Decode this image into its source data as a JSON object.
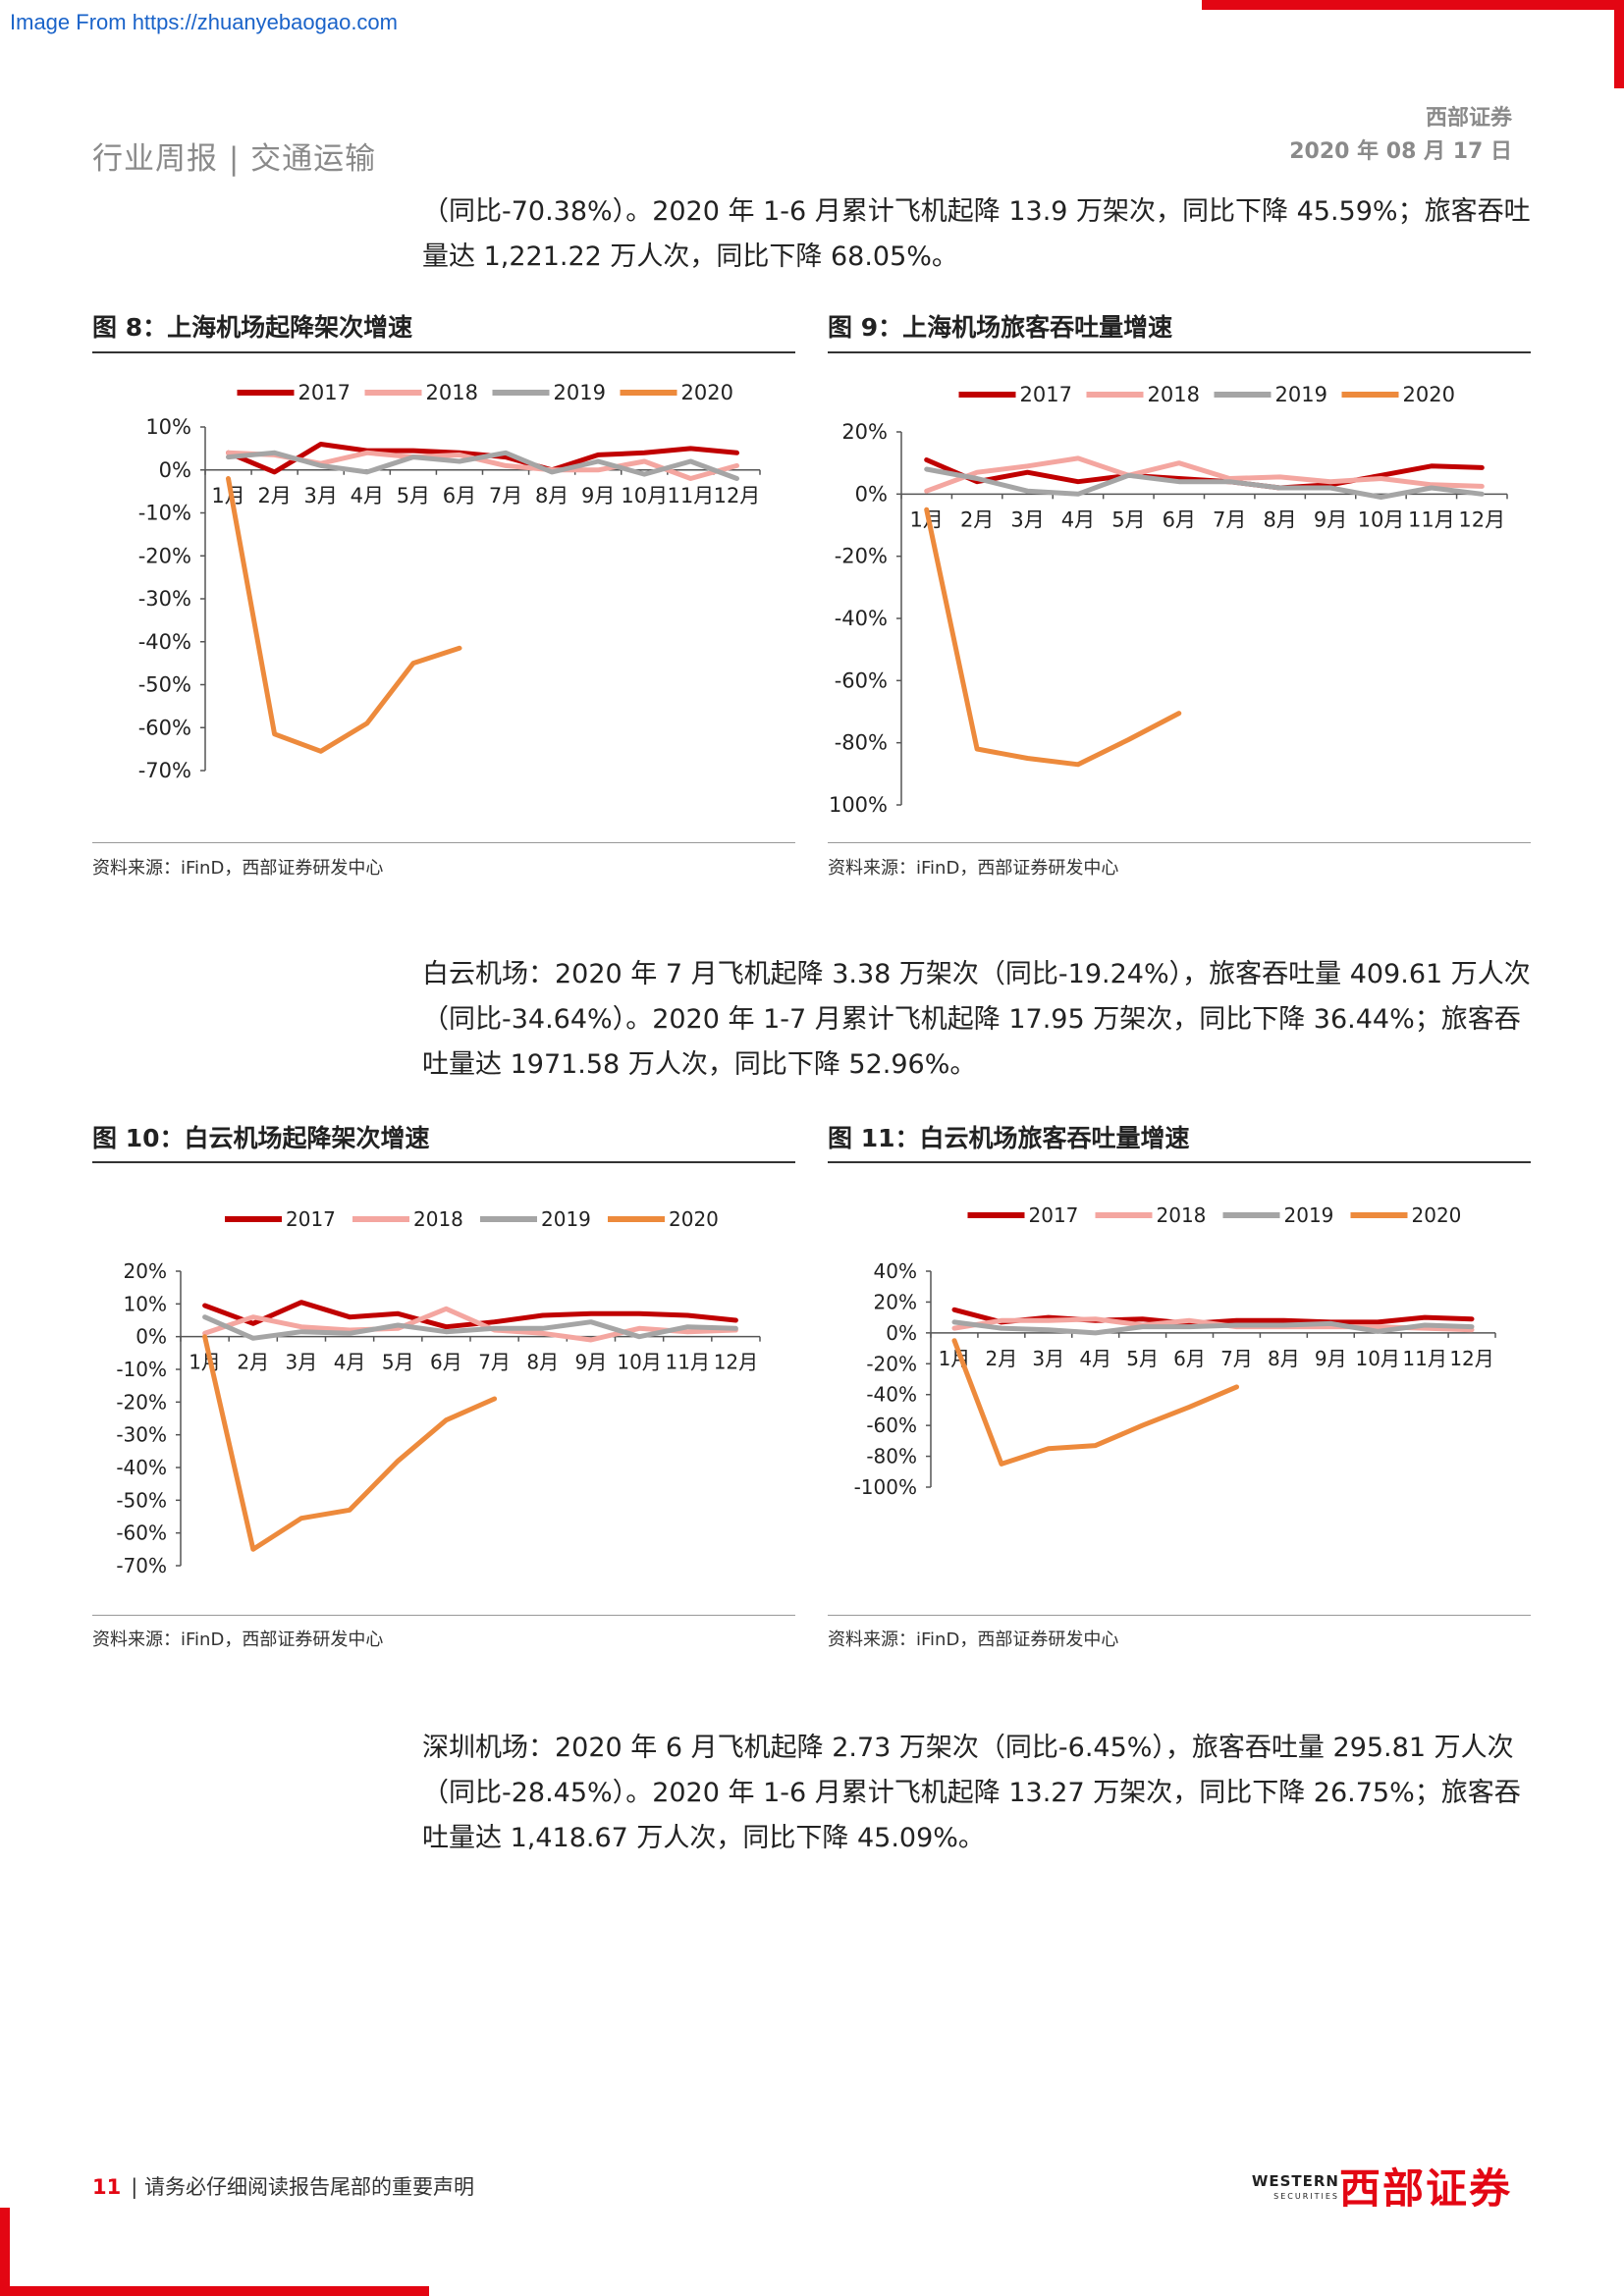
{
  "watermark": "Image From https://zhuanyebaogao.com",
  "header": {
    "left": "行业周报 | 交通运输",
    "company": "西部证券",
    "date": "2020 年 08 月 17 日"
  },
  "paragraphs": {
    "p1": "（同比-70.38%）。2020 年 1-6 月累计飞机起降 13.9 万架次，同比下降 45.59%；旅客吞吐量达 1,221.22 万人次，同比下降 68.05%。",
    "p2": "白云机场：2020 年 7 月飞机起降 3.38 万架次（同比-19.24%），旅客吞吐量 409.61 万人次（同比-34.64%）。2020 年 1-7 月累计飞机起降 17.95 万架次，同比下降 36.44%；旅客吞吐量达 1971.58 万人次，同比下降 52.96%。",
    "p3": "深圳机场：2020 年 6 月飞机起降 2.73 万架次（同比-6.45%），旅客吞吐量 295.81 万人次（同比-28.45%）。2020 年 1-6 月累计飞机起降 13.27 万架次，同比下降 26.75%；旅客吞吐量达 1,418.67 万人次，同比下降 45.09%。"
  },
  "figures": {
    "f8": {
      "title": "图 8：上海机场起降架次增速",
      "source": "资料来源：iFinD，西部证券研发中心"
    },
    "f9": {
      "title": "图 9：上海机场旅客吞吐量增速",
      "source": "资料来源：iFinD，西部证券研发中心"
    },
    "f10": {
      "title": "图 10：白云机场起降架次增速",
      "source": "资料来源：iFinD，西部证券研发中心"
    },
    "f11": {
      "title": "图 11：白云机场旅客吞吐量增速",
      "source": "资料来源：iFinD，西部证券研发中心"
    }
  },
  "footer": {
    "page_number": "11",
    "disclaimer": "| 请务必仔细阅读报告尾部的重要声明",
    "logo_cn": "西部证券",
    "logo_en": "WESTERN",
    "logo_en_sub": "SECURITIES"
  },
  "colors": {
    "brand_red": "#e30613",
    "s2017": "#c00000",
    "s2018": "#f4a6a0",
    "s2019": "#a5a5a5",
    "s2020": "#ed8a3c"
  },
  "chart_data": [
    {
      "id": "f8",
      "type": "line",
      "categories": [
        "1月",
        "2月",
        "3月",
        "4月",
        "5月",
        "6月",
        "7月",
        "8月",
        "9月",
        "10月",
        "11月",
        "12月"
      ],
      "ylim": [
        -70,
        10
      ],
      "yticks": [
        10,
        0,
        -10,
        -20,
        -30,
        -40,
        -50,
        -60,
        -70
      ],
      "series": [
        {
          "name": "2017",
          "values": [
            4,
            -0.5,
            6,
            4.5,
            4.5,
            4,
            3,
            0,
            3.5,
            4,
            5,
            4
          ]
        },
        {
          "name": "2018",
          "values": [
            4,
            3.5,
            1.5,
            4,
            3,
            3.5,
            1,
            0,
            0,
            2,
            -2,
            1
          ]
        },
        {
          "name": "2019",
          "values": [
            3,
            4,
            1,
            -0.5,
            3,
            2,
            4,
            -0.5,
            2,
            -1,
            2,
            -2
          ]
        },
        {
          "name": "2020",
          "values": [
            -2,
            -61.5,
            -65.5,
            -59,
            -45,
            -41.5,
            null,
            null,
            null,
            null,
            null,
            null
          ]
        }
      ],
      "legend": "top"
    },
    {
      "id": "f9",
      "type": "line",
      "categories": [
        "1月",
        "2月",
        "3月",
        "4月",
        "5月",
        "6月",
        "7月",
        "8月",
        "9月",
        "10月",
        "11月",
        "12月"
      ],
      "ylim": [
        -100,
        20
      ],
      "yticks": [
        20,
        0,
        -20,
        -40,
        -60,
        -80,
        -100
      ],
      "series": [
        {
          "name": "2017",
          "values": [
            11,
            4,
            7,
            4,
            6,
            5,
            4,
            2,
            3,
            6,
            9,
            8.5
          ]
        },
        {
          "name": "2018",
          "values": [
            1,
            7,
            9,
            11.5,
            6,
            10,
            5,
            5.5,
            4,
            5,
            3,
            2.5
          ]
        },
        {
          "name": "2019",
          "values": [
            8,
            5,
            1,
            0,
            6,
            4,
            4,
            2,
            2,
            -1,
            2,
            0
          ]
        },
        {
          "name": "2020",
          "values": [
            -5,
            -82,
            -85,
            -87,
            -79,
            -70.5,
            null,
            null,
            null,
            null,
            null,
            null
          ]
        }
      ],
      "legend": "top"
    },
    {
      "id": "f10",
      "type": "line",
      "categories": [
        "1月",
        "2月",
        "3月",
        "4月",
        "5月",
        "6月",
        "7月",
        "8月",
        "9月",
        "10月",
        "11月",
        "12月"
      ],
      "ylim": [
        -70,
        20
      ],
      "yticks": [
        20,
        10,
        0,
        -10,
        -20,
        -30,
        -40,
        -50,
        -60,
        -70
      ],
      "series": [
        {
          "name": "2017",
          "values": [
            9.5,
            4,
            10.5,
            6,
            7,
            3,
            4.5,
            6.5,
            7,
            7,
            6.5,
            5
          ]
        },
        {
          "name": "2018",
          "values": [
            1,
            6,
            3,
            2,
            2.5,
            8.5,
            2,
            1,
            -1,
            2.5,
            1.5,
            2
          ]
        },
        {
          "name": "2019",
          "values": [
            6,
            -0.5,
            1.5,
            1,
            3.5,
            1.5,
            2.5,
            2.5,
            4.5,
            0,
            3,
            2.5
          ]
        },
        {
          "name": "2020",
          "values": [
            0,
            -65,
            -55.5,
            -53,
            -38,
            -25.5,
            -19,
            null,
            null,
            null,
            null,
            null
          ]
        }
      ],
      "legend": "top"
    },
    {
      "id": "f11",
      "type": "line",
      "categories": [
        "1月",
        "2月",
        "3月",
        "4月",
        "5月",
        "6月",
        "7月",
        "8月",
        "9月",
        "10月",
        "11月",
        "12月"
      ],
      "ylim": [
        -100,
        40
      ],
      "yticks": [
        40,
        20,
        0,
        -20,
        -40,
        -60,
        -80,
        -100
      ],
      "series": [
        {
          "name": "2017",
          "values": [
            15,
            7,
            10,
            8,
            9,
            6,
            8,
            8,
            7,
            7,
            10,
            9
          ]
        },
        {
          "name": "2018",
          "values": [
            3,
            8,
            8,
            9,
            5,
            8,
            4,
            4,
            4,
            4,
            3,
            2
          ]
        },
        {
          "name": "2019",
          "values": [
            7,
            3,
            2,
            0,
            4,
            4,
            5,
            5,
            6,
            1,
            5,
            4
          ]
        },
        {
          "name": "2020",
          "values": [
            -5,
            -85,
            -75,
            -73,
            -60,
            -48,
            -35,
            null,
            null,
            null,
            null,
            null
          ]
        }
      ],
      "legend": "top"
    }
  ]
}
